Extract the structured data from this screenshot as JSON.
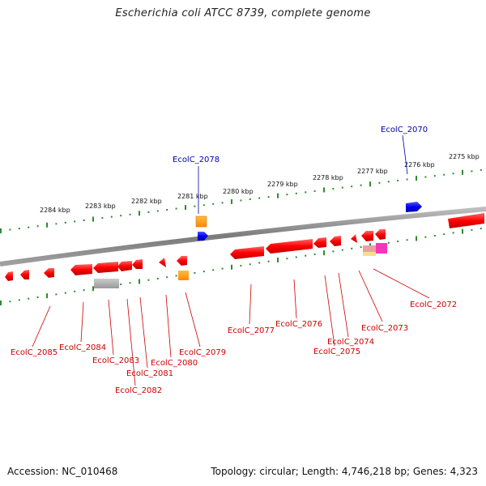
{
  "title": "Escherichia coli ATCC 8739, complete genome",
  "footer": {
    "accession": "Accession: NC_010468",
    "summary": "Topology: circular; Length: 4,746,218 bp; Genes: 4,323"
  },
  "scale_labels": [
    "2284 kbp",
    "2283 kbp",
    "2282 kbp",
    "2281 kbp",
    "2280 kbp",
    "2279 kbp",
    "2278 kbp",
    "2277 kbp",
    "2276 kbp",
    "2275 kbp"
  ],
  "gene_labels_top": [
    "EcolC_2078",
    "EcolC_2070"
  ],
  "gene_labels_bottom": [
    "EcolC_2085",
    "EcolC_2084",
    "EcolC_2083",
    "EcolC_2082",
    "EcolC_2081",
    "EcolC_2080",
    "EcolC_2079",
    "EcolC_2077",
    "EcolC_2076",
    "EcolC_2075",
    "EcolC_2074",
    "EcolC_2073",
    "EcolC_2072"
  ],
  "colors": {
    "forward_gene_label": "#0000aa",
    "reverse_gene_label": "#cc0000",
    "scale_tick": "#2e8b2e",
    "backbone": "#808080",
    "gene_cds": "#ff0000",
    "gene_blue": "#0000ee",
    "gene_orange": "#ff8800",
    "gene_gray": "#aaaaaa",
    "gene_pink": "#ff44cc"
  }
}
